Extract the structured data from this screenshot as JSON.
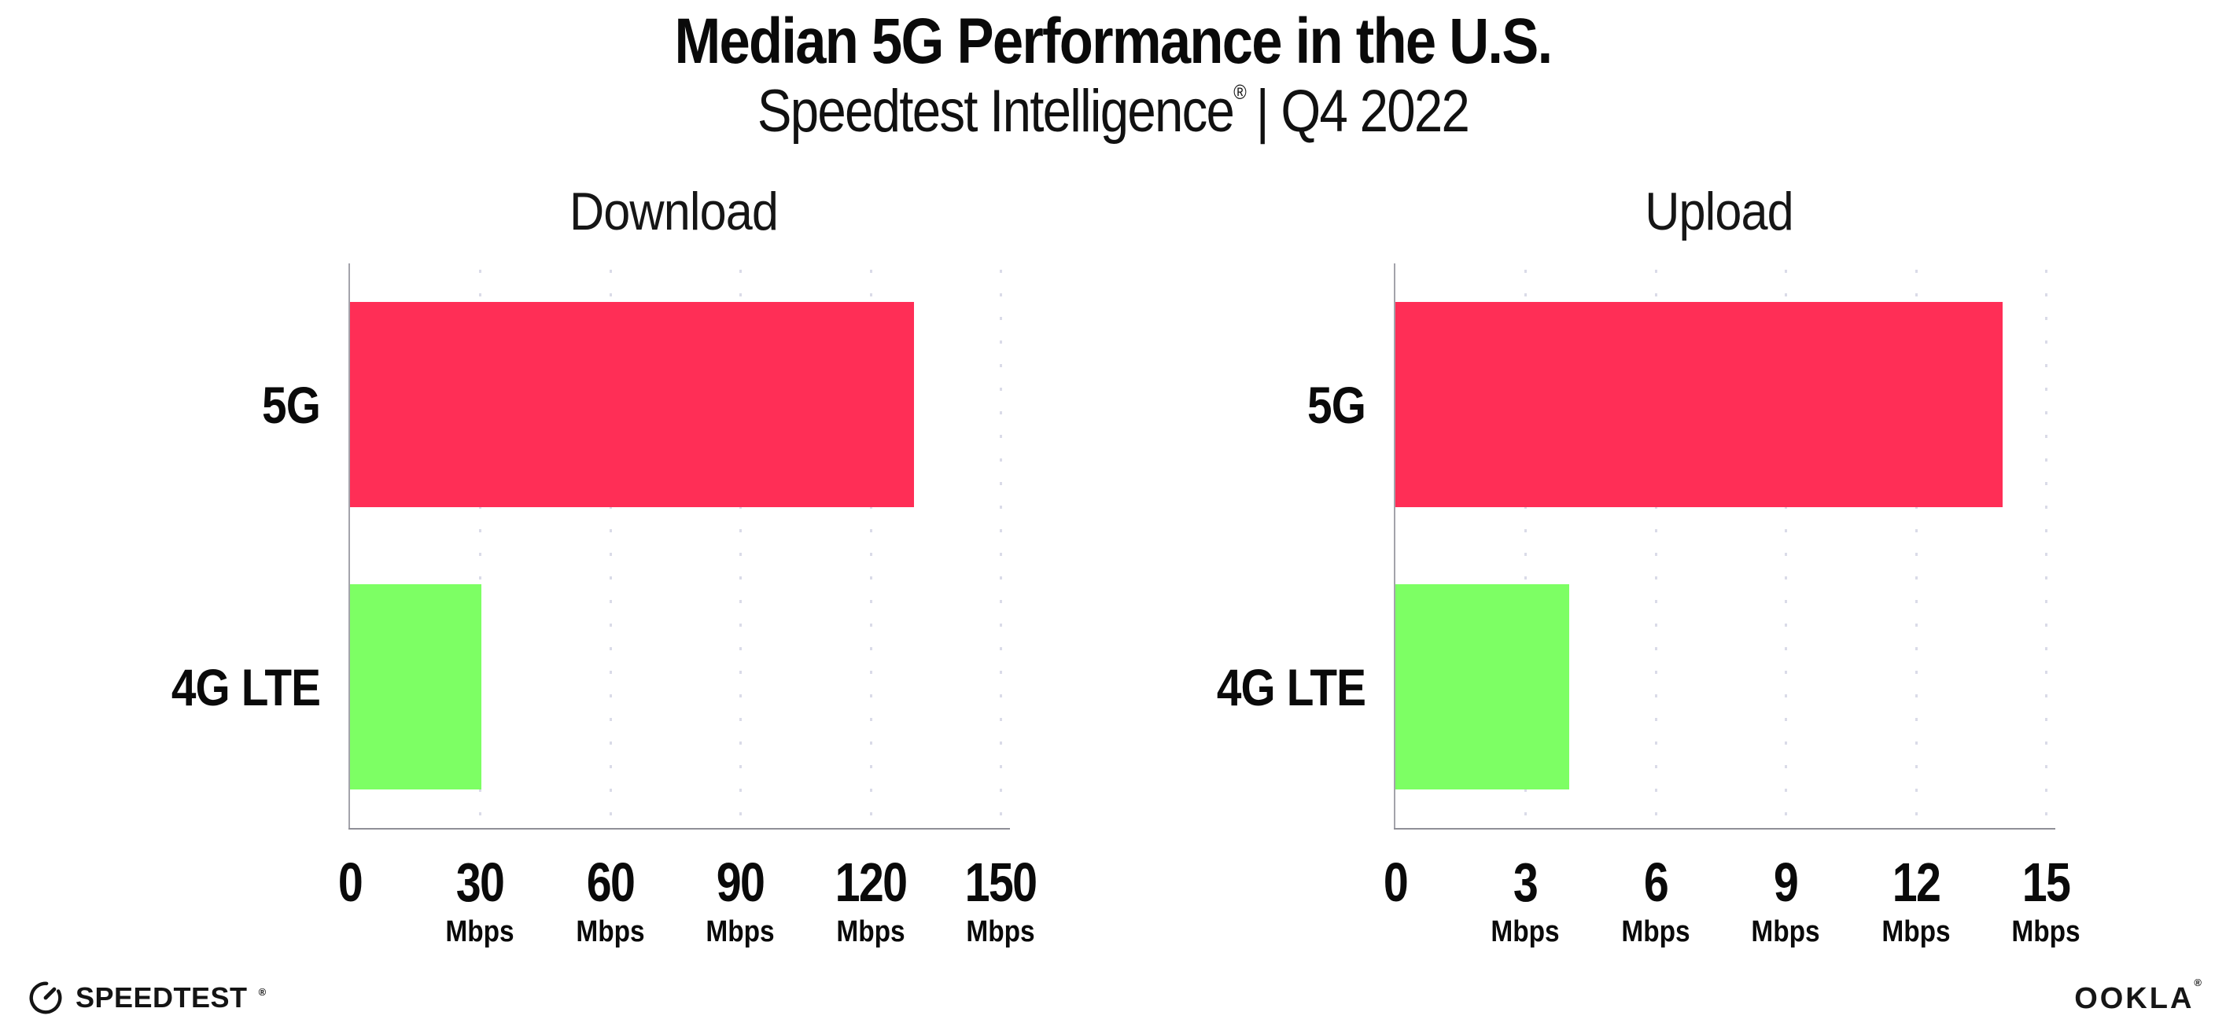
{
  "header": {
    "title": "Median 5G Performance in the U.S.",
    "subtitle_brand": "Speedtest Intelligence",
    "subtitle_reg": "®",
    "subtitle_rest": "| Q4 2022"
  },
  "colors": {
    "bar_5g": "#FF2E56",
    "bar_4g_lte": "#7DFF64",
    "axis": "#8f8f97",
    "gridline": "#dadbe8",
    "text": "#0d0d0d",
    "background": "#ffffff"
  },
  "chart_data": [
    {
      "type": "bar",
      "orientation": "horizontal",
      "title": "Download",
      "categories": [
        "5G",
        "4G LTE"
      ],
      "values": [
        130,
        30.3
      ],
      "unit": "Mbps",
      "xlim": [
        0,
        150
      ],
      "ticks": [
        0,
        30,
        60,
        90,
        120,
        150
      ],
      "bar_colors": [
        "#FF2E56",
        "#7DFF64"
      ],
      "grid": "dotted-vertical",
      "legend": "none"
    },
    {
      "type": "bar",
      "orientation": "horizontal",
      "title": "Upload",
      "categories": [
        "5G",
        "4G LTE"
      ],
      "values": [
        14,
        4
      ],
      "unit": "Mbps",
      "xlim": [
        0,
        15
      ],
      "ticks": [
        0,
        3,
        6,
        9,
        12,
        15
      ],
      "bar_colors": [
        "#FF2E56",
        "#7DFF64"
      ],
      "grid": "dotted-vertical",
      "legend": "none"
    }
  ],
  "footer": {
    "speedtest_logo_text": "SPEEDTEST",
    "speedtest_reg": "®",
    "ookla_logo_text": "OOKLA",
    "ookla_reg": "®"
  }
}
